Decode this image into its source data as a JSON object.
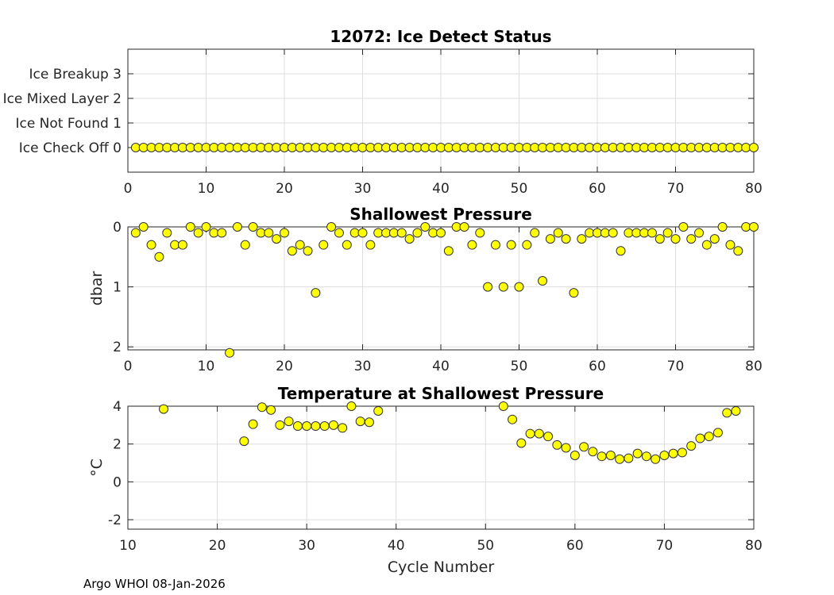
{
  "footer": "Argo WHOI 08-Jan-2026",
  "colors": {
    "marker": "#ffff00",
    "marker_edge": "#333333",
    "grid": "#dedede",
    "axis": "#262626"
  },
  "chart_data": [
    {
      "id": "ice",
      "type": "scatter",
      "title": "12072: Ice Detect Status",
      "xlabel": "",
      "ylabel": "",
      "xlim": [
        0,
        80
      ],
      "ylim": [
        -1,
        4
      ],
      "xticks": [
        0,
        10,
        20,
        30,
        40,
        50,
        60,
        70,
        80
      ],
      "yticks": [
        0,
        1,
        2,
        3
      ],
      "ytick_labels": [
        "Ice Check Off 0",
        "Ice Not Found 1",
        "Ice Mixed Layer 2",
        "Ice Breakup 3"
      ],
      "y_reversed": false,
      "grid": true,
      "x": [
        1,
        2,
        3,
        4,
        5,
        6,
        7,
        8,
        9,
        10,
        11,
        12,
        13,
        14,
        15,
        16,
        17,
        18,
        19,
        20,
        21,
        22,
        23,
        24,
        25,
        26,
        27,
        28,
        29,
        30,
        31,
        32,
        33,
        34,
        35,
        36,
        37,
        38,
        39,
        40,
        41,
        42,
        43,
        44,
        45,
        46,
        47,
        48,
        49,
        50,
        51,
        52,
        53,
        54,
        55,
        56,
        57,
        58,
        59,
        60,
        61,
        62,
        63,
        64,
        65,
        66,
        67,
        68,
        69,
        70,
        71,
        72,
        73,
        74,
        75,
        76,
        77,
        78,
        79,
        80
      ],
      "y": [
        0,
        0,
        0,
        0,
        0,
        0,
        0,
        0,
        0,
        0,
        0,
        0,
        0,
        0,
        0,
        0,
        0,
        0,
        0,
        0,
        0,
        0,
        0,
        0,
        0,
        0,
        0,
        0,
        0,
        0,
        0,
        0,
        0,
        0,
        0,
        0,
        0,
        0,
        0,
        0,
        0,
        0,
        0,
        0,
        0,
        0,
        0,
        0,
        0,
        0,
        0,
        0,
        0,
        0,
        0,
        0,
        0,
        0,
        0,
        0,
        0,
        0,
        0,
        0,
        0,
        0,
        0,
        0,
        0,
        0,
        0,
        0,
        0,
        0,
        0,
        0,
        0,
        0,
        0,
        0
      ]
    },
    {
      "id": "pres",
      "type": "scatter",
      "title": "Shallowest Pressure",
      "xlabel": "",
      "ylabel": "dbar",
      "xlim": [
        0,
        80
      ],
      "ylim": [
        0,
        2.05
      ],
      "xticks": [
        0,
        10,
        20,
        30,
        40,
        50,
        60,
        70,
        80
      ],
      "yticks": [
        0,
        1,
        2
      ],
      "ytick_labels": [
        "0",
        "1",
        "2"
      ],
      "y_reversed": true,
      "grid": true,
      "x": [
        1,
        2,
        3,
        4,
        5,
        6,
        7,
        8,
        9,
        10,
        11,
        12,
        13,
        14,
        15,
        16,
        17,
        18,
        19,
        20,
        21,
        22,
        23,
        24,
        25,
        26,
        27,
        28,
        29,
        30,
        31,
        32,
        33,
        34,
        35,
        36,
        37,
        38,
        39,
        40,
        41,
        42,
        43,
        44,
        45,
        46,
        47,
        48,
        49,
        50,
        51,
        52,
        53,
        54,
        55,
        56,
        57,
        58,
        59,
        60,
        61,
        62,
        63,
        64,
        65,
        66,
        67,
        68,
        69,
        70,
        71,
        72,
        73,
        74,
        75,
        76,
        77,
        78,
        79,
        80
      ],
      "y": [
        0.1,
        0,
        0.3,
        0.5,
        0.1,
        0.3,
        0.3,
        0,
        0.1,
        0,
        0.1,
        0.1,
        2.1,
        0,
        0.3,
        0,
        0.1,
        0.1,
        0.2,
        0.1,
        0.4,
        0.3,
        0.4,
        1.1,
        0.3,
        0,
        0.1,
        0.3,
        0.1,
        0.1,
        0.3,
        0.1,
        0.1,
        0.1,
        0.1,
        0.2,
        0.1,
        0,
        0.1,
        0.1,
        0.4,
        0,
        0,
        0.3,
        0.1,
        1,
        0.3,
        1,
        0.3,
        1,
        0.3,
        0.1,
        0.9,
        0.2,
        0.1,
        0.2,
        1.1,
        0.2,
        0.1,
        0.1,
        0.1,
        0.1,
        0.4,
        0.1,
        0.1,
        0.1,
        0.1,
        0.2,
        0.1,
        0.2,
        0,
        0.2,
        0.1,
        0.3,
        0.2,
        0,
        0.3,
        0.4,
        0,
        0
      ]
    },
    {
      "id": "temp",
      "type": "scatter",
      "title": "Temperature at Shallowest Pressure",
      "xlabel": "Cycle Number",
      "ylabel": "°C",
      "xlim": [
        10,
        80
      ],
      "ylim": [
        -2.5,
        4
      ],
      "xticks": [
        10,
        20,
        30,
        40,
        50,
        60,
        70,
        80
      ],
      "yticks": [
        -2,
        0,
        2,
        4
      ],
      "ytick_labels": [
        "-2",
        "0",
        "2",
        "4"
      ],
      "y_reversed": false,
      "grid": true,
      "x": [
        14,
        23,
        24,
        25,
        26,
        27,
        28,
        29,
        30,
        31,
        32,
        33,
        34,
        35,
        36,
        37,
        38,
        52,
        53,
        54,
        55,
        56,
        57,
        58,
        59,
        60,
        61,
        62,
        63,
        64,
        65,
        66,
        67,
        68,
        69,
        70,
        71,
        72,
        73,
        74,
        75,
        76,
        77,
        78
      ],
      "y": [
        3.85,
        2.15,
        3.05,
        3.95,
        3.8,
        3.0,
        3.2,
        2.95,
        2.95,
        2.95,
        2.95,
        3.0,
        2.85,
        4.0,
        3.2,
        3.15,
        3.75,
        4.0,
        3.3,
        2.05,
        2.55,
        2.55,
        2.4,
        1.95,
        1.8,
        1.4,
        1.85,
        1.6,
        1.35,
        1.4,
        1.2,
        1.25,
        1.5,
        1.35,
        1.2,
        1.4,
        1.5,
        1.55,
        1.9,
        2.3,
        2.4,
        2.6,
        3.65,
        3.75
      ]
    }
  ]
}
